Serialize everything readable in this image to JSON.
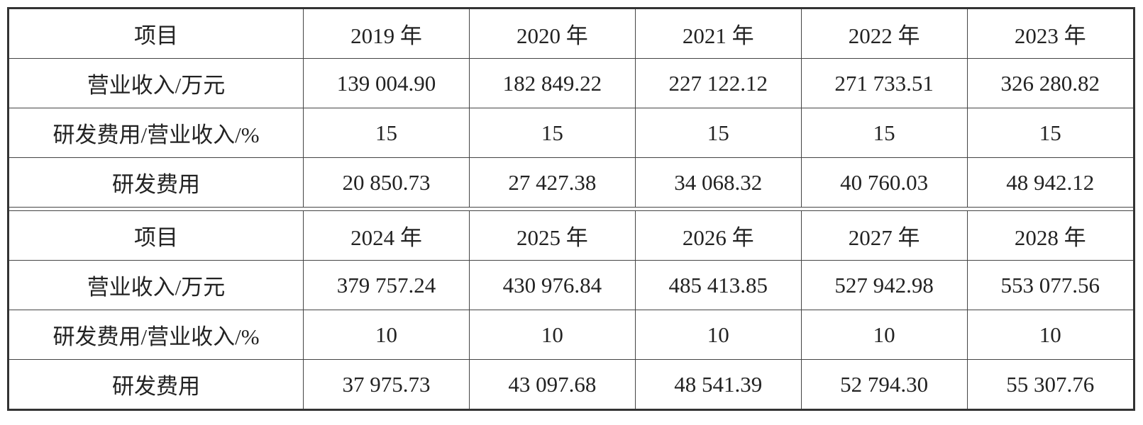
{
  "tables": [
    {
      "rows": [
        [
          "项目",
          "2019 年",
          "2020 年",
          "2021 年",
          "2022 年",
          "2023 年"
        ],
        [
          "营业收入/万元",
          "139 004.90",
          "182 849.22",
          "227 122.12",
          "271 733.51",
          "326 280.82"
        ],
        [
          "研发费用/营业收入/%",
          "15",
          "15",
          "15",
          "15",
          "15"
        ],
        [
          "研发费用",
          "20 850.73",
          "27 427.38",
          "34 068.32",
          "40 760.03",
          "48 942.12"
        ]
      ]
    },
    {
      "rows": [
        [
          "项目",
          "2024 年",
          "2025 年",
          "2026 年",
          "2027 年",
          "2028 年"
        ],
        [
          "营业收入/万元",
          "379 757.24",
          "430 976.84",
          "485 413.85",
          "527 942.98",
          "553 077.56"
        ],
        [
          "研发费用/营业收入/%",
          "10",
          "10",
          "10",
          "10",
          "10"
        ],
        [
          "研发费用",
          "37 975.73",
          "43 097.68",
          "48 541.39",
          "52 794.30",
          "55 307.76"
        ]
      ]
    }
  ]
}
